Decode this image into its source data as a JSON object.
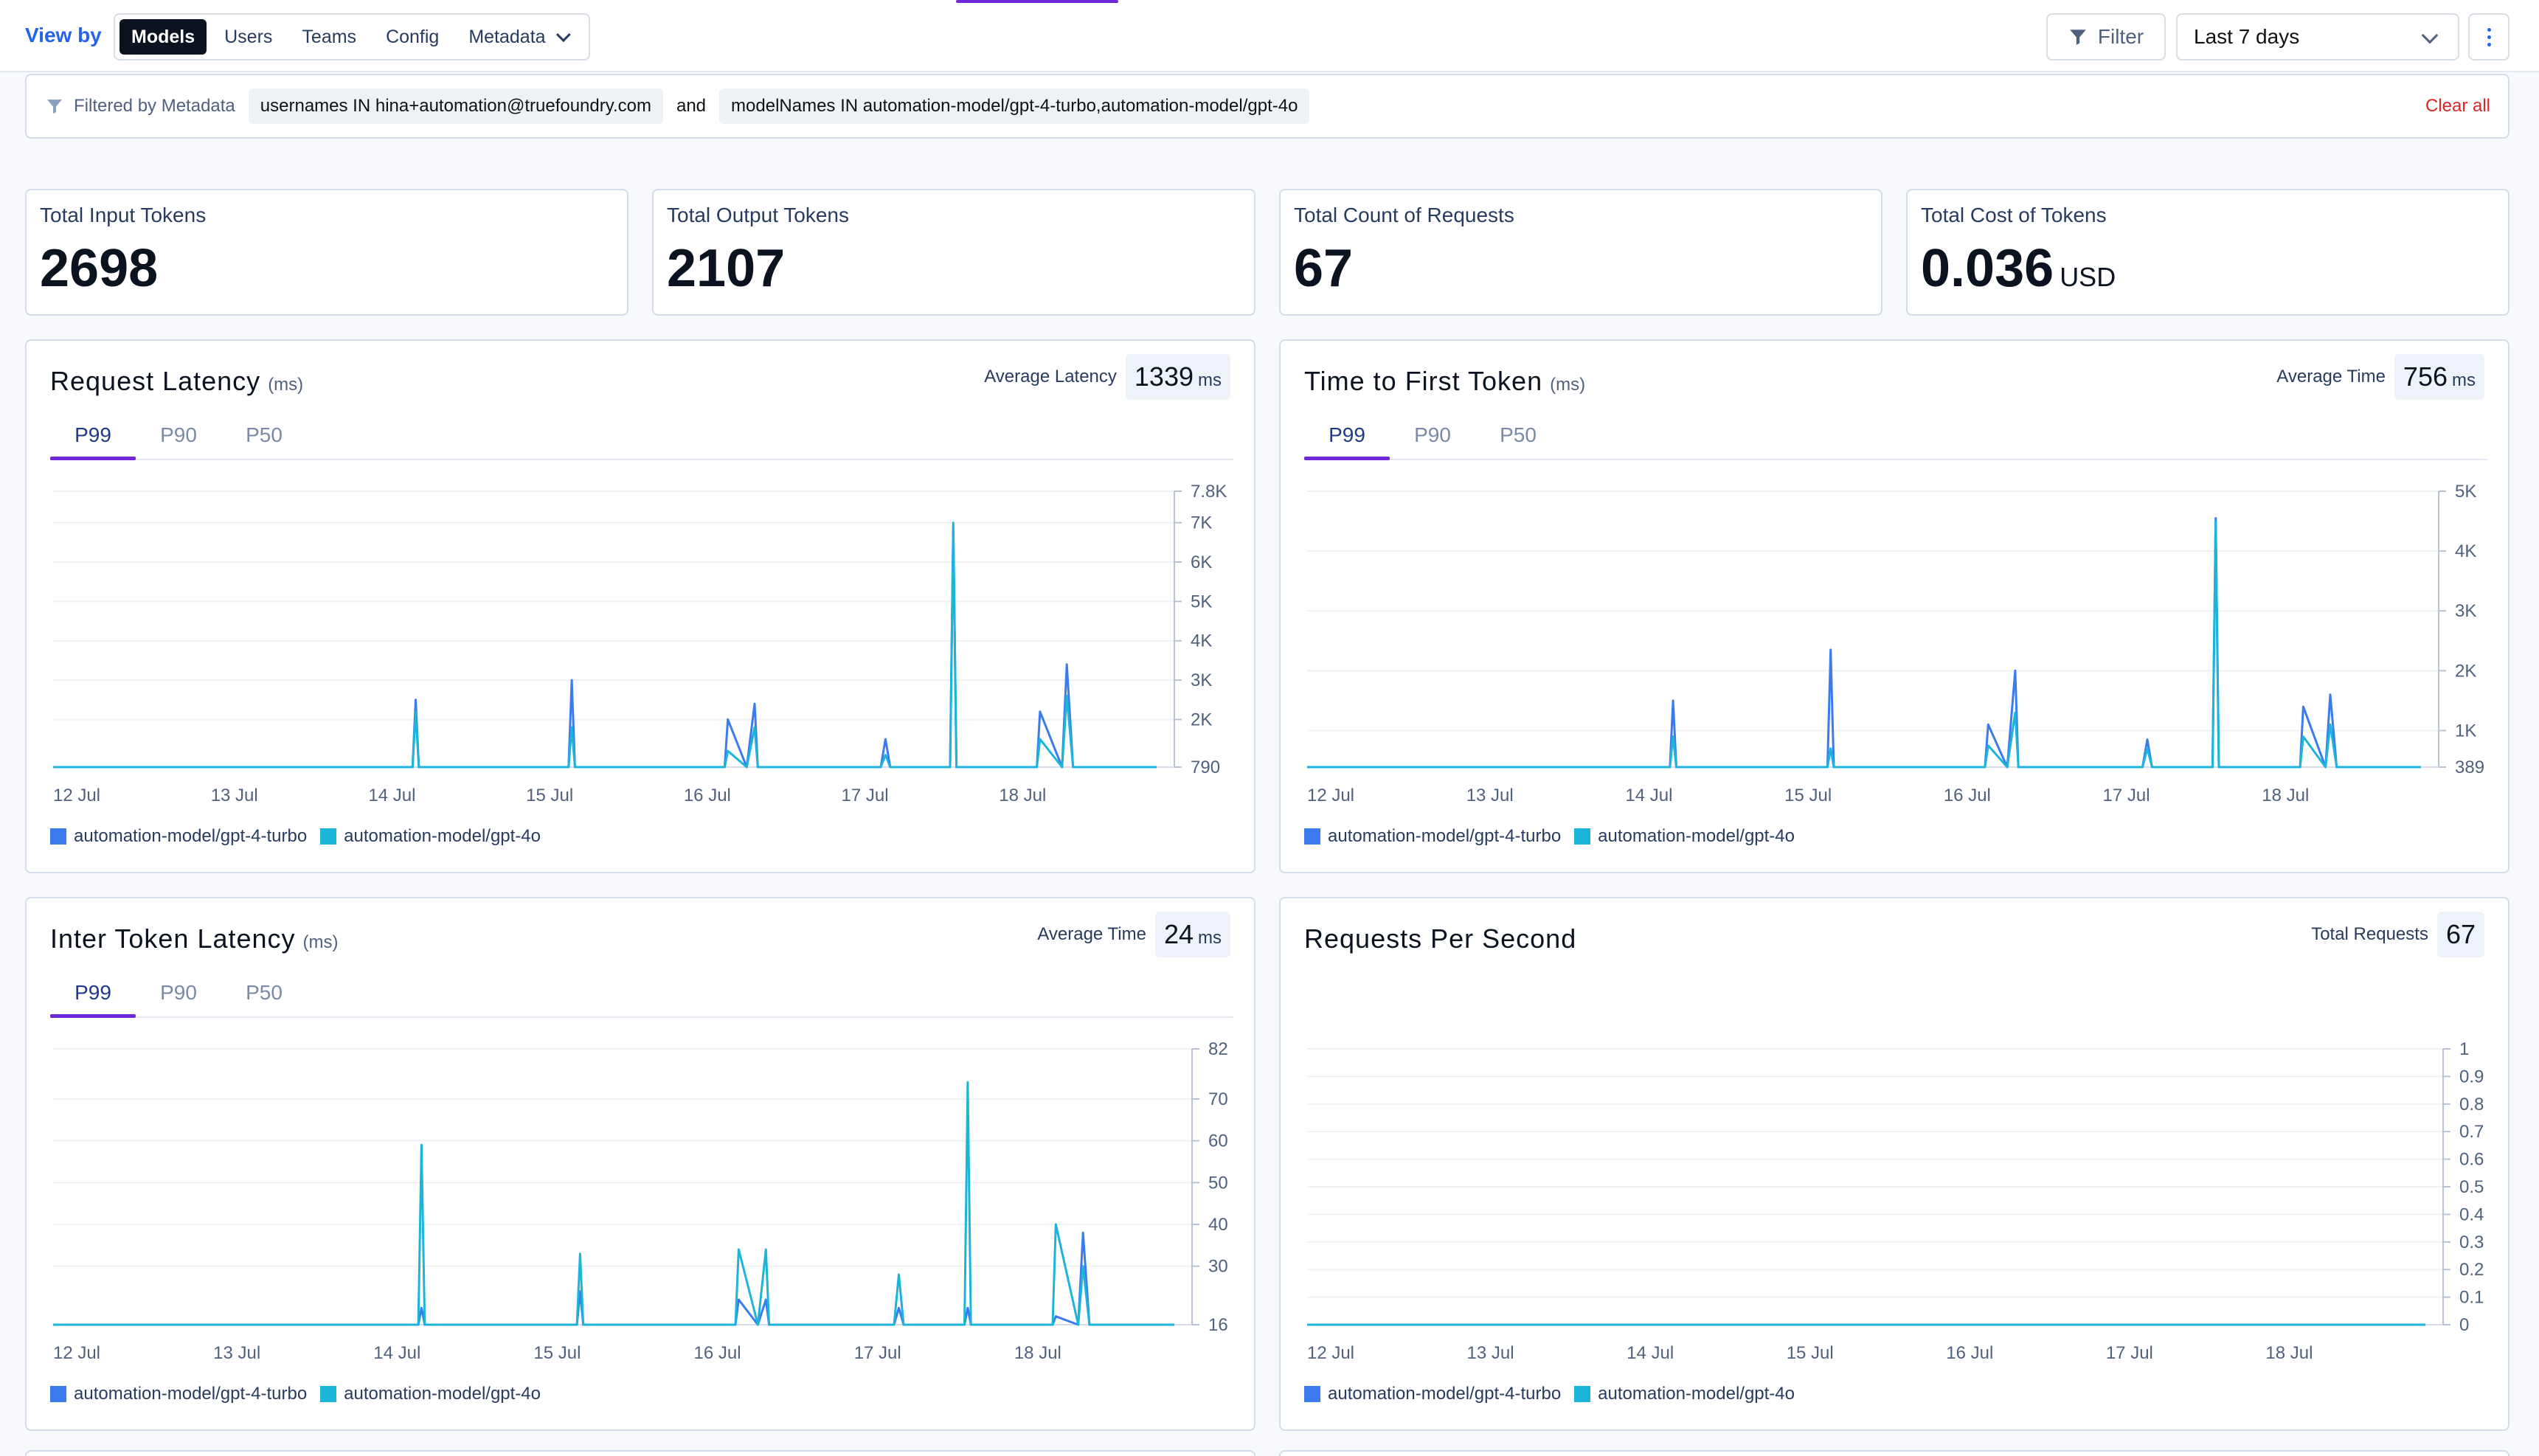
{
  "topbar": {
    "view_by_label": "View by",
    "segments": [
      {
        "label": "Models",
        "active": true
      },
      {
        "label": "Users",
        "active": false
      },
      {
        "label": "Teams",
        "active": false
      },
      {
        "label": "Config",
        "active": false
      },
      {
        "label": "Metadata",
        "active": false
      }
    ],
    "filter_label": "Filter",
    "range_value": "Last 7 days"
  },
  "filterbar": {
    "label": "Filtered by Metadata",
    "chip1": "usernames IN hina+automation@truefoundry.com",
    "and_label": "and",
    "chip2": "modelNames IN automation-model/gpt-4-turbo,automation-model/gpt-4o",
    "clear_label": "Clear all"
  },
  "stats": [
    {
      "label": "Total Input Tokens",
      "value": "2698",
      "unit": ""
    },
    {
      "label": "Total Output Tokens",
      "value": "2107",
      "unit": ""
    },
    {
      "label": "Total Count of Requests",
      "value": "67",
      "unit": ""
    },
    {
      "label": "Total Cost of Tokens",
      "value": "0.036",
      "unit": "USD"
    }
  ],
  "colors": {
    "series1": "#3b7bed",
    "series2": "#1cb5d9",
    "accent": "#6d28d9",
    "link": "#2563eb"
  },
  "legend": [
    "automation-model/gpt-4-turbo",
    "automation-model/gpt-4o"
  ],
  "cards": [
    {
      "title": "Request Latency",
      "unit": "(ms)",
      "avg_label": "Average Latency",
      "avg_value": "1339",
      "avg_unit": "ms",
      "tabs": [
        "P99",
        "P90",
        "P50"
      ]
    },
    {
      "title": "Time to First Token",
      "unit": "(ms)",
      "avg_label": "Average Time",
      "avg_value": "756",
      "avg_unit": "ms",
      "tabs": [
        "P99",
        "P90",
        "P50"
      ]
    },
    {
      "title": "Inter Token Latency",
      "unit": "(ms)",
      "avg_label": "Average Time",
      "avg_value": "24",
      "avg_unit": "ms",
      "tabs": [
        "P99",
        "P90",
        "P50"
      ]
    },
    {
      "title": "Requests Per Second",
      "unit": "",
      "avg_label": "Total Requests",
      "avg_value": "67",
      "avg_unit": "",
      "tabs": []
    }
  ],
  "chart_data": [
    {
      "type": "line",
      "title": "Request Latency",
      "x_start_label": "12 Jul",
      "x_ticks": [
        "12 Jul",
        "13 Jul",
        "14 Jul",
        "15 Jul",
        "16 Jul",
        "17 Jul",
        "18 Jul"
      ],
      "y_ticks": [
        "7.8K",
        "7K",
        "6K",
        "5K",
        "4K",
        "3K",
        "2K",
        "790"
      ],
      "y_tick_values": [
        7800,
        7000,
        6000,
        5000,
        4000,
        3000,
        2000,
        790
      ],
      "ylim": [
        790,
        7800
      ],
      "x_range_days": [
        12.0,
        19.0
      ],
      "series": [
        {
          "name": "automation-model/gpt-4-turbo",
          "x": [
            12.0,
            14.28,
            14.3,
            14.32,
            15.27,
            15.29,
            15.31,
            16.26,
            16.28,
            16.4,
            16.45,
            16.47,
            17.25,
            17.28,
            17.31,
            17.69,
            17.71,
            17.73,
            18.24,
            18.26,
            18.4,
            18.43,
            18.47,
            19.0
          ],
          "y": [
            790,
            790,
            2500,
            790,
            790,
            3000,
            790,
            790,
            2000,
            790,
            2400,
            790,
            790,
            1500,
            790,
            790,
            6900,
            790,
            790,
            2200,
            790,
            3400,
            790,
            790
          ]
        },
        {
          "name": "automation-model/gpt-4o",
          "x": [
            12.0,
            14.28,
            14.3,
            14.32,
            15.27,
            15.29,
            15.31,
            16.26,
            16.28,
            16.4,
            16.45,
            16.47,
            17.25,
            17.28,
            17.31,
            17.69,
            17.71,
            17.73,
            18.24,
            18.26,
            18.4,
            18.43,
            18.47,
            19.0
          ],
          "y": [
            790,
            790,
            2200,
            790,
            790,
            1800,
            790,
            790,
            1200,
            790,
            1800,
            790,
            790,
            1100,
            790,
            790,
            7000,
            790,
            790,
            1500,
            790,
            2600,
            790,
            790
          ]
        }
      ]
    },
    {
      "type": "line",
      "title": "Time to First Token",
      "x_ticks": [
        "12 Jul",
        "13 Jul",
        "14 Jul",
        "15 Jul",
        "16 Jul",
        "17 Jul",
        "18 Jul"
      ],
      "y_ticks": [
        "5K",
        "4K",
        "3K",
        "2K",
        "1K",
        "389"
      ],
      "y_tick_values": [
        5000,
        4000,
        3000,
        2000,
        1000,
        389
      ],
      "ylim": [
        389,
        5000
      ],
      "x_range_days": [
        12.0,
        19.0
      ],
      "series": [
        {
          "name": "automation-model/gpt-4-turbo",
          "x": [
            12.0,
            14.28,
            14.3,
            14.32,
            15.27,
            15.29,
            15.31,
            16.26,
            16.28,
            16.4,
            16.45,
            16.47,
            17.25,
            17.28,
            17.31,
            17.69,
            17.71,
            17.73,
            18.24,
            18.26,
            18.4,
            18.43,
            18.47,
            19.0
          ],
          "y": [
            389,
            389,
            1500,
            389,
            389,
            2350,
            389,
            389,
            1100,
            389,
            2000,
            389,
            389,
            850,
            389,
            389,
            4550,
            389,
            389,
            1400,
            389,
            1600,
            389,
            389
          ]
        },
        {
          "name": "automation-model/gpt-4o",
          "x": [
            12.0,
            14.28,
            14.3,
            14.32,
            15.27,
            15.29,
            15.31,
            16.26,
            16.28,
            16.4,
            16.45,
            16.47,
            17.25,
            17.28,
            17.31,
            17.69,
            17.71,
            17.73,
            18.24,
            18.26,
            18.4,
            18.43,
            18.47,
            19.0
          ],
          "y": [
            389,
            389,
            900,
            389,
            389,
            700,
            389,
            389,
            750,
            389,
            1300,
            389,
            389,
            700,
            389,
            389,
            4500,
            389,
            389,
            900,
            389,
            1100,
            389,
            389
          ]
        }
      ]
    },
    {
      "type": "line",
      "title": "Inter Token Latency",
      "x_ticks": [
        "12 Jul",
        "13 Jul",
        "14 Jul",
        "15 Jul",
        "16 Jul",
        "17 Jul",
        "18 Jul"
      ],
      "y_ticks": [
        "82",
        "70",
        "60",
        "50",
        "40",
        "30",
        "16"
      ],
      "y_tick_values": [
        82,
        70,
        60,
        50,
        40,
        30,
        16
      ],
      "ylim": [
        16,
        82
      ],
      "x_range_days": [
        12.0,
        19.0
      ],
      "series": [
        {
          "name": "automation-model/gpt-4-turbo",
          "x": [
            12.0,
            14.28,
            14.3,
            14.32,
            15.27,
            15.29,
            15.31,
            16.26,
            16.28,
            16.4,
            16.45,
            16.47,
            17.25,
            17.28,
            17.31,
            17.69,
            17.71,
            17.73,
            18.24,
            18.26,
            18.4,
            18.43,
            18.47,
            19.0
          ],
          "y": [
            16,
            16,
            20,
            16,
            16,
            24,
            16,
            16,
            22,
            16,
            22,
            16,
            16,
            20,
            16,
            16,
            20,
            16,
            16,
            18,
            16,
            38,
            16,
            16
          ]
        },
        {
          "name": "automation-model/gpt-4o",
          "x": [
            12.0,
            14.28,
            14.3,
            14.32,
            15.27,
            15.29,
            15.31,
            16.26,
            16.28,
            16.4,
            16.45,
            16.47,
            17.25,
            17.28,
            17.31,
            17.69,
            17.71,
            17.73,
            18.24,
            18.26,
            18.4,
            18.43,
            18.47,
            19.0
          ],
          "y": [
            16,
            16,
            59,
            16,
            16,
            33,
            16,
            16,
            34,
            16,
            34,
            16,
            16,
            28,
            16,
            16,
            74,
            16,
            16,
            40,
            16,
            30,
            16,
            16
          ]
        }
      ]
    },
    {
      "type": "line",
      "title": "Requests Per Second",
      "x_ticks": [
        "12 Jul",
        "13 Jul",
        "14 Jul",
        "15 Jul",
        "16 Jul",
        "17 Jul",
        "18 Jul"
      ],
      "y_ticks": [
        "1",
        "0.9",
        "0.8",
        "0.7",
        "0.6",
        "0.5",
        "0.4",
        "0.3",
        "0.2",
        "0.1",
        "0"
      ],
      "y_tick_values": [
        1,
        0.9,
        0.8,
        0.7,
        0.6,
        0.5,
        0.4,
        0.3,
        0.2,
        0.1,
        0
      ],
      "ylim": [
        0,
        1
      ],
      "x_range_days": [
        12.0,
        19.0
      ],
      "series": [
        {
          "name": "automation-model/gpt-4-turbo",
          "x": [
            12.0,
            19.0
          ],
          "y": [
            0,
            0
          ]
        },
        {
          "name": "automation-model/gpt-4o",
          "x": [
            12.0,
            19.0
          ],
          "y": [
            0,
            0
          ]
        }
      ]
    }
  ]
}
